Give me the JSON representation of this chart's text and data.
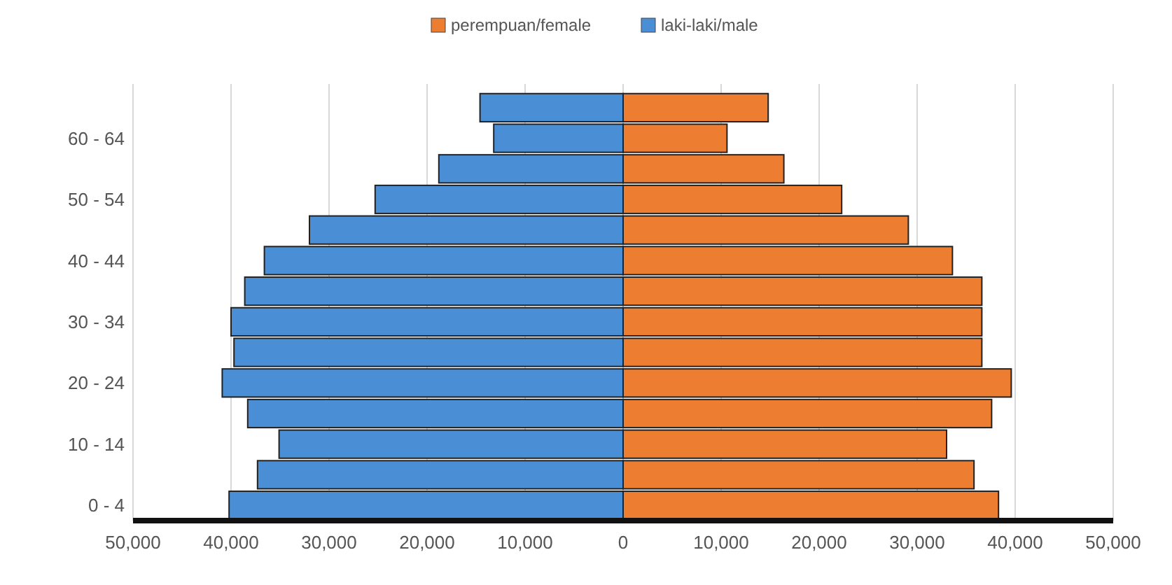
{
  "chart_data": {
    "type": "bar",
    "orientation": "horizontal",
    "stacked": true,
    "legend": "top",
    "grid": "x",
    "categories": [
      null,
      "60 - 64",
      null,
      "50 - 54",
      null,
      "40 - 44",
      null,
      "30 - 34",
      null,
      "20 - 24",
      null,
      "10 - 14",
      null,
      "0 - 4"
    ],
    "series": [
      {
        "name": "perempuan/female",
        "color": "#ed7d31",
        "values": [
          14800,
          10600,
          16400,
          22300,
          29100,
          33600,
          36600,
          36600,
          36600,
          39600,
          37600,
          33000,
          35800,
          38300
        ]
      },
      {
        "name": "laki-laki/male",
        "color": "#4a8fd6",
        "values": [
          -14600,
          -13200,
          -18800,
          -25300,
          -32000,
          -36600,
          -38600,
          -40000,
          -39700,
          -40900,
          -38300,
          -35100,
          -37300,
          -40200
        ]
      }
    ],
    "xlim": [
      -50000,
      50000
    ],
    "xticks": [
      {
        "value": -50000,
        "label": "50,000"
      },
      {
        "value": -40000,
        "label": "40,000"
      },
      {
        "value": -30000,
        "label": "30,000"
      },
      {
        "value": -20000,
        "label": "20,000"
      },
      {
        "value": -10000,
        "label": "10,000"
      },
      {
        "value": 0,
        "label": "0"
      },
      {
        "value": 10000,
        "label": "10,000"
      },
      {
        "value": 20000,
        "label": "20,000"
      },
      {
        "value": 30000,
        "label": "30,000"
      },
      {
        "value": 40000,
        "label": "40,000"
      },
      {
        "value": 50000,
        "label": "50,000"
      }
    ]
  }
}
